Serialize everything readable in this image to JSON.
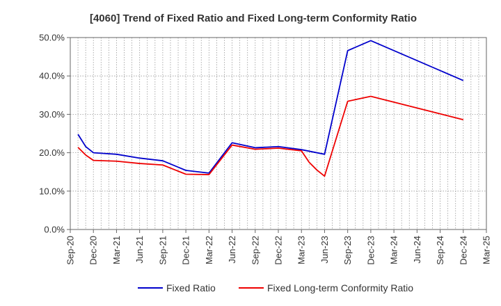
{
  "chart_data": {
    "type": "line",
    "title": "[4060]  Trend of Fixed Ratio and Fixed Long-term Conformity Ratio",
    "xlabel": "",
    "ylabel": "",
    "ylim": [
      0,
      50
    ],
    "y_ticks": [
      "0.0%",
      "10.0%",
      "20.0%",
      "30.0%",
      "40.0%",
      "50.0%"
    ],
    "x_ticks": [
      "Sep-20",
      "Dec-20",
      "Mar-21",
      "Jun-21",
      "Sep-21",
      "Dec-21",
      "Mar-22",
      "Jun-22",
      "Sep-22",
      "Dec-22",
      "Mar-23",
      "Jun-23",
      "Sep-23",
      "Dec-23",
      "Mar-24",
      "Jun-24",
      "Sep-24",
      "Dec-24",
      "Mar-25"
    ],
    "grid": true,
    "legend_position": "bottom",
    "series": [
      {
        "name": "Fixed Ratio",
        "color": "#0000cc",
        "points": [
          [
            1,
            24.8
          ],
          [
            2,
            21.6
          ],
          [
            3,
            20.0
          ],
          [
            6,
            19.6
          ],
          [
            9,
            18.6
          ],
          [
            12,
            17.9
          ],
          [
            15,
            15.4
          ],
          [
            18,
            14.7
          ],
          [
            21,
            22.6
          ],
          [
            24,
            21.3
          ],
          [
            27,
            21.6
          ],
          [
            30,
            20.8
          ],
          [
            33,
            19.6
          ],
          [
            36,
            46.6
          ],
          [
            39,
            49.2
          ],
          [
            51,
            38.8
          ]
        ]
      },
      {
        "name": "Fixed Long-term Conformity Ratio",
        "color": "#ee0000",
        "points": [
          [
            1,
            21.4
          ],
          [
            2,
            19.4
          ],
          [
            3,
            18.0
          ],
          [
            6,
            17.8
          ],
          [
            9,
            17.2
          ],
          [
            12,
            16.8
          ],
          [
            15,
            14.4
          ],
          [
            18,
            14.3
          ],
          [
            21,
            22.0
          ],
          [
            24,
            20.9
          ],
          [
            27,
            21.2
          ],
          [
            30,
            20.5
          ],
          [
            31,
            17.5
          ],
          [
            32,
            15.5
          ],
          [
            33,
            13.9
          ],
          [
            36,
            33.4
          ],
          [
            39,
            34.7
          ],
          [
            51,
            28.6
          ]
        ]
      }
    ]
  }
}
